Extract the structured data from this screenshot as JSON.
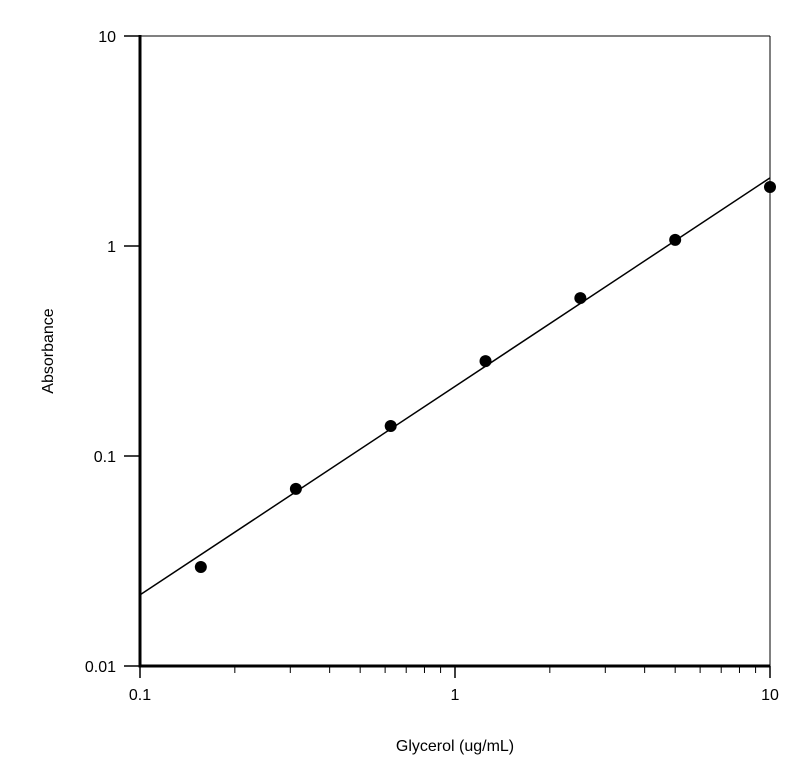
{
  "chart_data": {
    "type": "scatter",
    "x_label": "Glycerol (ug/mL)",
    "y_label": "Absorbance",
    "log_x": true,
    "log_y": true,
    "xlim": [
      0.1,
      10
    ],
    "ylim": [
      0.01,
      10
    ],
    "xticks": [
      0.1,
      1,
      10
    ],
    "yticks": [
      0.01,
      0.1,
      1,
      10
    ],
    "xminorticks": [
      0.2,
      0.3,
      0.4,
      0.5,
      0.6,
      0.7,
      0.8,
      0.9,
      2,
      3,
      4,
      5,
      6,
      7,
      8,
      9
    ],
    "series": [
      {
        "type": "scatter",
        "color": "#000000",
        "x": [
          0.156,
          0.3125,
          0.625,
          1.25,
          2.5,
          5,
          10
        ],
        "values": [
          0.0296,
          0.0697,
          0.139,
          0.283,
          0.565,
          1.07,
          1.91
        ]
      },
      {
        "type": "line",
        "color": "#000000",
        "x": [
          0.1,
          10
        ],
        "values": [
          0.0218,
          2.11
        ]
      }
    ]
  }
}
